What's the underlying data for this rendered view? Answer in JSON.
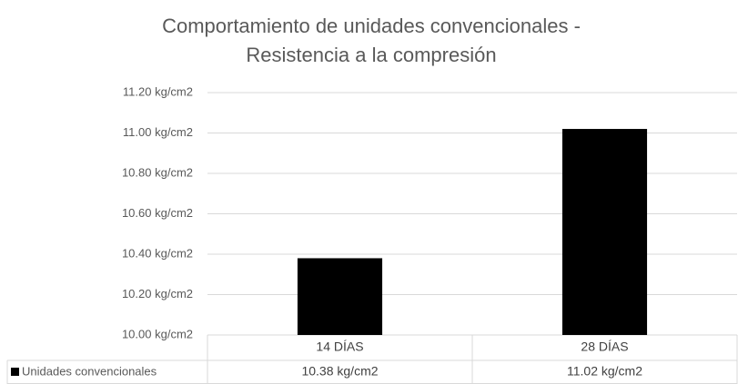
{
  "chart_data": {
    "type": "bar",
    "title": [
      "Comportamiento de unidades convencionales -",
      "Resistencia a la compresión"
    ],
    "categories": [
      "14 DÍAS",
      "28 DÍAS"
    ],
    "series": [
      {
        "name": "Unidades convencionales",
        "color": "#000000",
        "values": [
          10.38,
          11.02
        ],
        "value_labels": [
          "10.38 kg/cm2",
          "11.02 kg/cm2"
        ]
      }
    ],
    "ylim": [
      10.0,
      11.2
    ],
    "yticks": [
      {
        "value": 10.0,
        "label": "10.00 kg/cm2"
      },
      {
        "value": 10.2,
        "label": "10.20 kg/cm2"
      },
      {
        "value": 10.4,
        "label": "10.40 kg/cm2"
      },
      {
        "value": 10.6,
        "label": "10.60 kg/cm2"
      },
      {
        "value": 10.8,
        "label": "10.80 kg/cm2"
      },
      {
        "value": 11.0,
        "label": "11.00 kg/cm2"
      },
      {
        "value": 11.2,
        "label": "11.20 kg/cm2"
      }
    ],
    "grid": true
  }
}
